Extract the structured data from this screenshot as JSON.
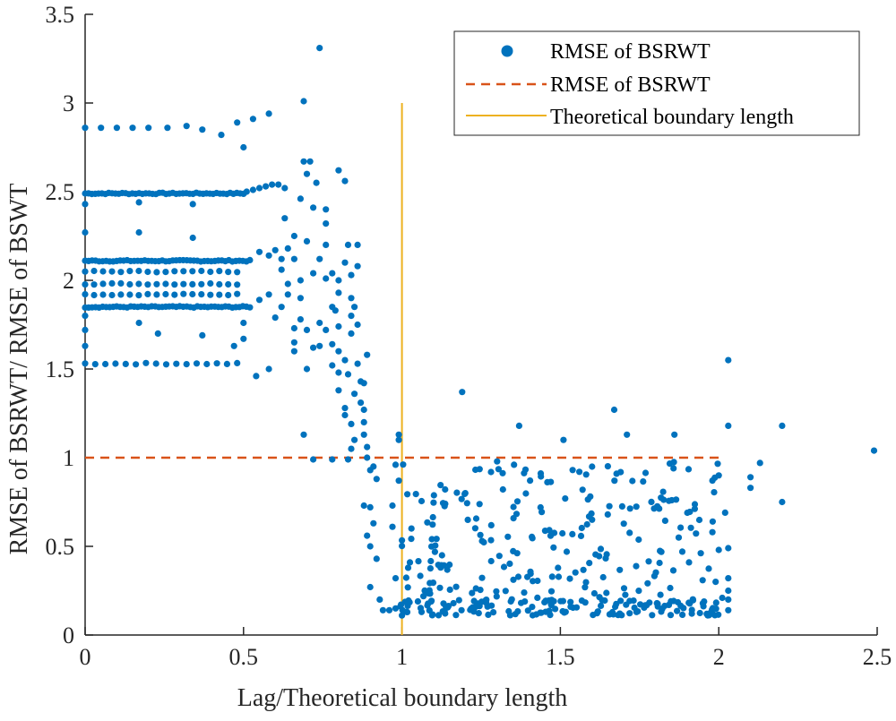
{
  "chart_data": {
    "type": "scatter",
    "title": "",
    "xlabel": "Lag/Theoretical boundary length",
    "ylabel": "RMSE of BSRWT/ RMSE of BSWT",
    "xlim": [
      0,
      2.5
    ],
    "ylim": [
      0,
      3.5
    ],
    "xticks": [
      "0",
      "0.5",
      "1",
      "1.5",
      "2",
      "2.5"
    ],
    "yticks": [
      "0",
      "0.5",
      "1",
      "1.5",
      "2",
      "2.5",
      "3",
      "3.5"
    ],
    "grid": false,
    "legend_position": "top-right",
    "colors": {
      "scatter": "#0072BD",
      "reference": "#D95319",
      "boundary": "#EDB120",
      "axis": "#262626"
    },
    "series": [
      {
        "name": "RMSE of BSRWT",
        "kind": "markers",
        "bands": [
          {
            "y": 2.49,
            "x_start": 0,
            "x_end": 0.5,
            "count": 48
          },
          {
            "y": 2.11,
            "x_start": 0,
            "x_end": 0.52,
            "count": 48
          },
          {
            "y": 2.05,
            "x_start": 0,
            "x_end": 0.48,
            "count": 18
          },
          {
            "y": 1.98,
            "x_start": 0,
            "x_end": 0.48,
            "count": 18
          },
          {
            "y": 1.92,
            "x_start": 0,
            "x_end": 0.48,
            "count": 18
          },
          {
            "y": 1.85,
            "x_start": 0,
            "x_end": 0.52,
            "count": 48
          },
          {
            "y": 1.53,
            "x_start": 0,
            "x_end": 0.48,
            "count": 16
          }
        ],
        "points": [
          [
            0,
            2.86
          ],
          [
            0.05,
            2.86
          ],
          [
            0.1,
            2.86
          ],
          [
            0.15,
            2.86
          ],
          [
            0.2,
            2.86
          ],
          [
            0.26,
            2.86
          ],
          [
            0.32,
            2.87
          ],
          [
            0.37,
            2.85
          ],
          [
            0.43,
            2.82
          ],
          [
            0.48,
            2.89
          ],
          [
            0.53,
            2.91
          ],
          [
            0.58,
            2.94
          ],
          [
            0.5,
            2.75
          ],
          [
            0,
            2.43
          ],
          [
            0,
            2.27
          ],
          [
            0,
            1.8
          ],
          [
            0,
            1.72
          ],
          [
            0,
            1.63
          ],
          [
            0.17,
            2.44
          ],
          [
            0.17,
            2.27
          ],
          [
            0.34,
            2.43
          ],
          [
            0.34,
            2.24
          ],
          [
            0.17,
            1.76
          ],
          [
            0.23,
            1.7
          ],
          [
            0.37,
            1.69
          ],
          [
            0.47,
            1.63
          ],
          [
            0.5,
            1.67
          ],
          [
            0.5,
            1.76
          ],
          [
            0.54,
            1.46
          ],
          [
            0.58,
            1.5
          ],
          [
            0.51,
            2.5
          ],
          [
            0.53,
            2.51
          ],
          [
            0.55,
            2.52
          ],
          [
            0.57,
            2.53
          ],
          [
            0.59,
            2.54
          ],
          [
            0.61,
            2.54
          ],
          [
            0.63,
            2.52
          ],
          [
            0.55,
            2.16
          ],
          [
            0.58,
            2.14
          ],
          [
            0.6,
            2.17
          ],
          [
            0.62,
            2.12
          ],
          [
            0.64,
            2.18
          ],
          [
            0.66,
            2.25
          ],
          [
            0.55,
            1.89
          ],
          [
            0.58,
            1.92
          ],
          [
            0.62,
            1.85
          ],
          [
            0.64,
            1.92
          ],
          [
            0.6,
            1.79
          ],
          [
            0.62,
            2.06
          ],
          [
            0.64,
            1.98
          ],
          [
            0.66,
            2.12
          ],
          [
            0.66,
            1.65
          ],
          [
            0.68,
            2.0
          ],
          [
            0.68,
            1.78
          ],
          [
            0.68,
            2.46
          ],
          [
            0.7,
            2.6
          ],
          [
            0.7,
            2.22
          ],
          [
            0.7,
            1.72
          ],
          [
            0.69,
            3.01
          ],
          [
            0.69,
            2.67
          ],
          [
            0.71,
            2.67
          ],
          [
            0.72,
            2.41
          ],
          [
            0.72,
            2.04
          ],
          [
            0.72,
            1.62
          ],
          [
            0.73,
            2.55
          ],
          [
            0.74,
            2.12
          ],
          [
            0.74,
            1.76
          ],
          [
            0.76,
            2.4
          ],
          [
            0.76,
            2.32
          ],
          [
            0.76,
            2.2
          ],
          [
            0.76,
            2.01
          ],
          [
            0.78,
            1.85
          ],
          [
            0.78,
            1.64
          ],
          [
            0.78,
            1.52
          ],
          [
            0.74,
            3.31
          ],
          [
            0.69,
            1.13
          ],
          [
            0.72,
            0.99
          ],
          [
            0.68,
            1.9
          ],
          [
            0.66,
            1.73
          ],
          [
            0.63,
            2.35
          ],
          [
            0.66,
            1.6
          ],
          [
            0.7,
            1.5
          ],
          [
            0.74,
            1.63
          ],
          [
            0.76,
            1.72
          ],
          [
            0.8,
            2.0
          ],
          [
            0.8,
            1.93
          ],
          [
            0.8,
            1.74
          ],
          [
            0.8,
            1.6
          ],
          [
            0.8,
            1.48
          ],
          [
            0.8,
            1.38
          ],
          [
            0.82,
            1.24
          ],
          [
            0.82,
            1.28
          ],
          [
            0.83,
            2.2
          ],
          [
            0.82,
            2.1
          ],
          [
            0.84,
            1.9
          ],
          [
            0.84,
            1.8
          ],
          [
            0.85,
            1.85
          ],
          [
            0.86,
            1.75
          ],
          [
            0.86,
            2.08
          ],
          [
            0.86,
            2.2
          ],
          [
            0.84,
            2.03
          ],
          [
            0.82,
            1.55
          ],
          [
            0.84,
            1.7
          ],
          [
            0.86,
            1.53
          ],
          [
            0.87,
            1.43
          ],
          [
            0.88,
            1.42
          ],
          [
            0.88,
            1.27
          ],
          [
            0.88,
            1.2
          ],
          [
            0.89,
            1.58
          ],
          [
            0.84,
            1.19
          ],
          [
            0.85,
            1.36
          ],
          [
            0.79,
            1.83
          ],
          [
            0.78,
            2.04
          ],
          [
            0.8,
            2.62
          ],
          [
            0.82,
            2.56
          ],
          [
            0.83,
            1.47
          ],
          [
            0.85,
            1.1
          ],
          [
            0.87,
            1.31
          ],
          [
            0.78,
            0.99
          ],
          [
            0.83,
            0.99
          ],
          [
            0.84,
            1.05
          ],
          [
            0.88,
            1.13
          ],
          [
            0.89,
            1.06
          ],
          [
            0.89,
            1.0
          ],
          [
            0.9,
            0.93
          ],
          [
            0.91,
            0.95
          ],
          [
            0.92,
            0.88
          ],
          [
            0.9,
            0.72
          ],
          [
            0.88,
            0.73
          ],
          [
            0.89,
            0.56
          ],
          [
            0.9,
            0.5
          ],
          [
            0.91,
            0.63
          ],
          [
            0.92,
            0.43
          ],
          [
            0.9,
            0.27
          ],
          [
            0.93,
            0.2
          ],
          [
            0.94,
            0.14
          ],
          [
            0.96,
            0.14
          ],
          [
            0.97,
            0.61
          ],
          [
            0.97,
            0.73
          ],
          [
            0.98,
            0.96
          ],
          [
            0.98,
            0.32
          ],
          [
            0.99,
            0.87
          ],
          [
            0.98,
            0.15
          ],
          [
            1.0,
            0.11
          ],
          [
            0.99,
            1.1
          ],
          [
            0.99,
            1.13
          ],
          [
            2.03,
            1.55
          ],
          [
            2.03,
            1.18
          ],
          [
            2.2,
            1.18
          ],
          [
            2.49,
            1.04
          ],
          [
            2.13,
            0.97
          ],
          [
            2.1,
            0.89
          ],
          [
            2.1,
            0.83
          ],
          [
            2.2,
            0.75
          ],
          [
            1.19,
            1.37
          ],
          [
            1.37,
            1.18
          ],
          [
            1.51,
            1.1
          ],
          [
            1.67,
            1.27
          ],
          [
            1.71,
            1.13
          ],
          [
            1.86,
            1.13
          ],
          [
            1.56,
            0.92
          ],
          [
            1.2,
            0.8
          ],
          [
            1.6,
            0.65
          ],
          [
            2.03,
            0.49
          ],
          [
            2.03,
            0.32
          ],
          [
            2.03,
            0.25
          ],
          [
            2.03,
            0.2
          ],
          [
            2.03,
            0.14
          ],
          [
            2.0,
            0.9
          ],
          [
            2.02,
            0.69
          ],
          [
            1.98,
            0.58
          ],
          [
            2.0,
            0.48
          ],
          [
            1.99,
            0.3
          ],
          [
            1.98,
            0.12
          ]
        ],
        "cloud": {
          "x_start": 1.0,
          "x_end": 2.02,
          "y_start": 0.11,
          "y_end": 0.98,
          "count": 240
        },
        "bottom_band": {
          "y_start": 0.11,
          "y_end": 0.2,
          "x_start": 0.99,
          "x_end": 2.0,
          "count": 120
        }
      },
      {
        "name": "RMSE of BSRWT",
        "kind": "dashed-line",
        "x": [
          0,
          2.0
        ],
        "y": [
          1,
          1
        ]
      },
      {
        "name": "Theoretical boundary length",
        "kind": "vertical-line",
        "x": [
          1,
          1
        ],
        "y": [
          0,
          3
        ]
      }
    ],
    "legend": [
      "RMSE of BSRWT",
      "RMSE of BSRWT",
      "Theoretical boundary length"
    ]
  }
}
